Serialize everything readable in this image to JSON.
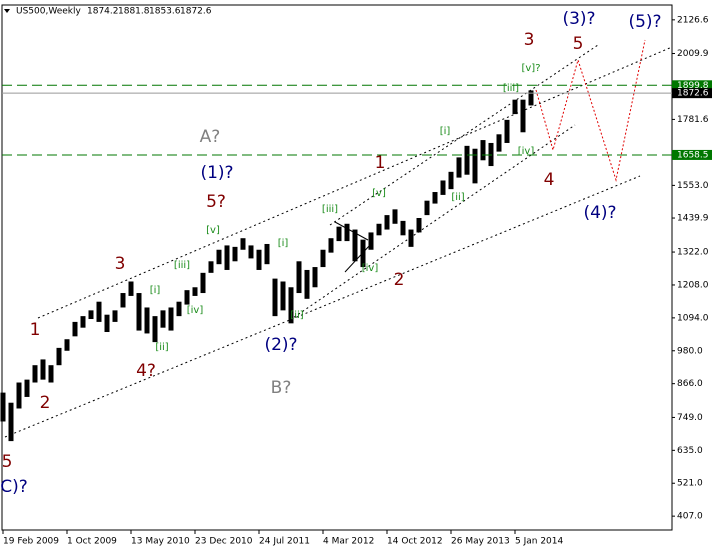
{
  "header": {
    "symbol": "US500,Weekly",
    "open": 1874.2,
    "high": 1881.8,
    "low": 1853.6,
    "close": 1872.6
  },
  "chart_data": {
    "type": "ohlc",
    "x": [
      0,
      4,
      8,
      12,
      16,
      20,
      24,
      28,
      32,
      36,
      40,
      44,
      48,
      52,
      56,
      60,
      64,
      68,
      72,
      76,
      80,
      84,
      88,
      92,
      96,
      100,
      104,
      108,
      112,
      116,
      120,
      124,
      128,
      132,
      136,
      140,
      144,
      148,
      152,
      156,
      160,
      164,
      168,
      172,
      176,
      180,
      184,
      188,
      192,
      196,
      200,
      204,
      208,
      212,
      216,
      220,
      224,
      228,
      232,
      236,
      240,
      244,
      248,
      252,
      256,
      260,
      264
    ],
    "high": [
      835,
      800,
      870,
      880,
      930,
      950,
      930,
      990,
      1020,
      1080,
      1100,
      1120,
      1150,
      1105,
      1120,
      1180,
      1220,
      1180,
      1130,
      1100,
      1120,
      1130,
      1150,
      1190,
      1200,
      1250,
      1290,
      1330,
      1345,
      1340,
      1370,
      1345,
      1330,
      1350,
      1230,
      1220,
      1200,
      1290,
      1260,
      1270,
      1330,
      1370,
      1410,
      1420,
      1400,
      1365,
      1390,
      1420,
      1450,
      1470,
      1430,
      1400,
      1440,
      1500,
      1530,
      1570,
      1600,
      1650,
      1690,
      1680,
      1710,
      1700,
      1730,
      1780,
      1850,
      1850,
      1882
    ],
    "low": [
      735,
      667,
      780,
      820,
      870,
      880,
      870,
      930,
      980,
      1030,
      1060,
      1090,
      1080,
      1045,
      1080,
      1130,
      1170,
      1050,
      1040,
      1010,
      1060,
      1050,
      1100,
      1140,
      1170,
      1180,
      1250,
      1280,
      1260,
      1290,
      1330,
      1300,
      1260,
      1280,
      1100,
      1120,
      1075,
      1180,
      1160,
      1200,
      1270,
      1320,
      1360,
      1360,
      1290,
      1270,
      1330,
      1380,
      1400,
      1420,
      1380,
      1340,
      1390,
      1450,
      1490,
      1520,
      1540,
      1580,
      1590,
      1560,
      1640,
      1620,
      1670,
      1700,
      1800,
      1737,
      1830
    ],
    "color": "#000000",
    "xlim": [
      -0.5,
      334.5
    ],
    "xticks": [
      {
        "value": 0,
        "label": "19 Feb 2009"
      },
      {
        "value": 32,
        "label": "1 Oct 2009"
      },
      {
        "value": 64,
        "label": "13 May 2010"
      },
      {
        "value": 96,
        "label": "23 Dec 2010"
      },
      {
        "value": 128,
        "label": "24 Jul 2011"
      },
      {
        "value": 160,
        "label": "4 Mar 2012"
      },
      {
        "value": 192,
        "label": "14 Oct 2012"
      },
      {
        "value": 224,
        "label": "26 May 2013"
      },
      {
        "value": 256,
        "label": "5 Jan 2014"
      }
    ],
    "ylim": [
      359,
      2178
    ],
    "yticks": [
      2126.6,
      2009.9,
      1781.6,
      {
        "value": 1553,
        "label": "1553.0"
      },
      1439.9,
      {
        "value": 1322,
        "label": "1322.0"
      },
      {
        "value": 1208,
        "label": "1208.0"
      },
      {
        "value": 1094,
        "label": "1094.0"
      },
      {
        "value": 980,
        "label": "980.0"
      },
      {
        "value": 866,
        "label": "866.0"
      },
      {
        "value": 749,
        "label": "749.0"
      },
      {
        "value": 635,
        "label": "635.0"
      },
      {
        "value": 521,
        "label": "521.0"
      },
      {
        "value": 407,
        "label": "407.0"
      }
    ],
    "levels": [
      1899.8,
      1658.5
    ],
    "level_color": "#007700",
    "current_price": 1872.6,
    "annotations": [
      {
        "text": "5",
        "color": "#800000"
      },
      {
        "text": "C)?",
        "color": "#000080"
      },
      {
        "text": "1",
        "color": "#800000"
      },
      {
        "text": "2",
        "color": "#800000"
      },
      {
        "text": "3",
        "color": "#800000"
      },
      {
        "text": "4?",
        "color": "#800000"
      },
      {
        "text": "5?",
        "color": "#800000"
      },
      {
        "text": "A?",
        "color": "#808080"
      },
      {
        "text": "(1)?",
        "color": "#000080"
      },
      {
        "text": "B?",
        "color": "#808080"
      },
      {
        "text": "(2)?",
        "color": "#000080"
      },
      {
        "text": "1",
        "color": "#800000"
      },
      {
        "text": "2",
        "color": "#800000"
      },
      {
        "text": "3",
        "color": "#800000"
      },
      {
        "text": "4",
        "color": "#800000"
      },
      {
        "text": "5",
        "color": "#800000"
      },
      {
        "text": "(3)?",
        "color": "#000080"
      },
      {
        "text": "(4)?",
        "color": "#000080"
      },
      {
        "text": "(5)?",
        "color": "#000080"
      }
    ],
    "wave_labels": [
      "[i]",
      "[ii]",
      "[iii]",
      "[iv]",
      "[v]",
      "[i]",
      "[ii]",
      "[iii]",
      "[iv]",
      "[v]",
      "[i]",
      "[ii]",
      "[iii]",
      "[iv]",
      "[v]?"
    ]
  }
}
